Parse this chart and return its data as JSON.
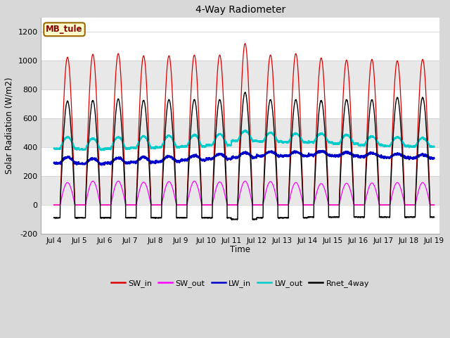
{
  "title": "4-Way Radiometer",
  "xlabel": "Time",
  "ylabel": "Solar Radiation (W/m2)",
  "annotation": "MB_tule",
  "ylim": [
    -200,
    1300
  ],
  "yticks": [
    -200,
    0,
    200,
    400,
    600,
    800,
    1000,
    1200
  ],
  "xlim_days": [
    3.5,
    19.2
  ],
  "xtick_positions": [
    4,
    5,
    6,
    7,
    8,
    9,
    10,
    11,
    12,
    13,
    14,
    15,
    16,
    17,
    18,
    19
  ],
  "xtick_labels": [
    "Jul 4",
    "Jul 5",
    "Jul 6",
    "Jul 7",
    "Jul 8",
    "Jul 9",
    "Jul 10",
    "Jul 11",
    "Jul 12",
    "Jul 13",
    "Jul 14",
    "Jul 15",
    "Jul 16",
    "Jul 17",
    "Jul 18",
    "Jul 19"
  ],
  "colors": {
    "SW_in": "#dd0000",
    "SW_out": "#ff00ff",
    "LW_in": "#0000cc",
    "LW_out": "#00cccc",
    "Rnet_4way": "#000000"
  },
  "band_colors": [
    "#ffffff",
    "#e8e8e8"
  ],
  "annotation_bg": "#ffffcc",
  "annotation_border": "#996600",
  "annotation_text_color": "#880000",
  "fig_bg": "#d8d8d8",
  "n_days": 15,
  "start_day": 4,
  "SW_in_peaks": [
    1025,
    1045,
    1050,
    1035,
    1035,
    1040,
    1040,
    1120,
    1040,
    1050,
    1020,
    1005,
    1010,
    1000,
    1010
  ],
  "SW_out_peaks": [
    155,
    165,
    165,
    158,
    162,
    165,
    160,
    165,
    162,
    155,
    148,
    150,
    152,
    155,
    155
  ],
  "LW_in_base": [
    290,
    285,
    290,
    295,
    300,
    310,
    320,
    330,
    340,
    340,
    345,
    340,
    335,
    330,
    325
  ],
  "LW_in_peak": [
    340,
    330,
    335,
    340,
    345,
    350,
    360,
    370,
    375,
    375,
    380,
    370,
    365,
    360,
    355
  ],
  "LW_out_base": [
    390,
    385,
    390,
    395,
    400,
    405,
    415,
    445,
    440,
    435,
    435,
    425,
    415,
    410,
    405
  ],
  "LW_out_peak": [
    490,
    480,
    490,
    495,
    500,
    505,
    510,
    530,
    515,
    510,
    510,
    500,
    490,
    485,
    480
  ],
  "Rnet_peak": [
    720,
    725,
    735,
    725,
    730,
    730,
    730,
    780,
    730,
    730,
    725,
    730,
    730,
    745,
    745
  ],
  "Rnet_night": [
    -90,
    -90,
    -90,
    -90,
    -90,
    -90,
    -90,
    -100,
    -90,
    -90,
    -85,
    -85,
    -85,
    -85,
    -85
  ]
}
